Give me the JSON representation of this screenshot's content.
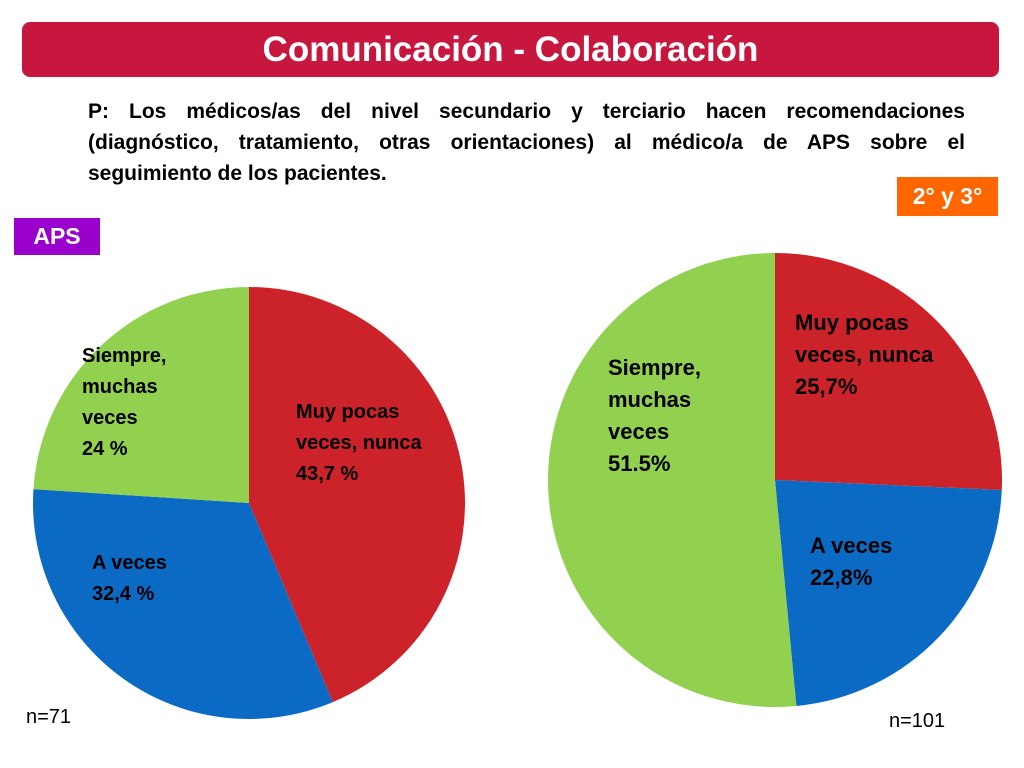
{
  "header": {
    "title": "Comunicación - Colaboración",
    "question": "P: Los médicos/as del nivel secundario y terciario hacen recomendaciones (diagnóstico, tratamiento, otras orientaciones) al médico/a de APS sobre el seguimiento de los pacientes."
  },
  "colors": {
    "title_bar": "#c8173f",
    "aps_badge": "#9900cc",
    "secondary_badge": "#ff6600",
    "muy_pocas": "#cc2229",
    "a_veces": "#0b6bc4",
    "siempre": "#92d050"
  },
  "chart_data": [
    {
      "type": "pie",
      "group_label": "APS",
      "n_label": "n=71",
      "slices": [
        {
          "label_lines": [
            "Muy pocas",
            "veces, nunca",
            "43,7 %"
          ],
          "value": 43.7,
          "color": "#cc2229"
        },
        {
          "label_lines": [
            "A veces",
            "32,4 %"
          ],
          "value": 32.4,
          "color": "#0b6bc4"
        },
        {
          "label_lines": [
            "Siempre,",
            "muchas",
            "veces",
            "24 %"
          ],
          "value": 24,
          "color": "#92d050"
        }
      ]
    },
    {
      "type": "pie",
      "group_label": "2° y 3°",
      "n_label": "n=101",
      "slices": [
        {
          "label_lines": [
            "Muy pocas",
            "veces, nunca",
            "25,7%"
          ],
          "value": 25.7,
          "color": "#cc2229"
        },
        {
          "label_lines": [
            "A veces",
            "22,8%"
          ],
          "value": 22.8,
          "color": "#0b6bc4"
        },
        {
          "label_lines": [
            "Siempre,",
            "muchas",
            "veces",
            "51.5%"
          ],
          "value": 51.5,
          "color": "#92d050"
        }
      ]
    }
  ]
}
